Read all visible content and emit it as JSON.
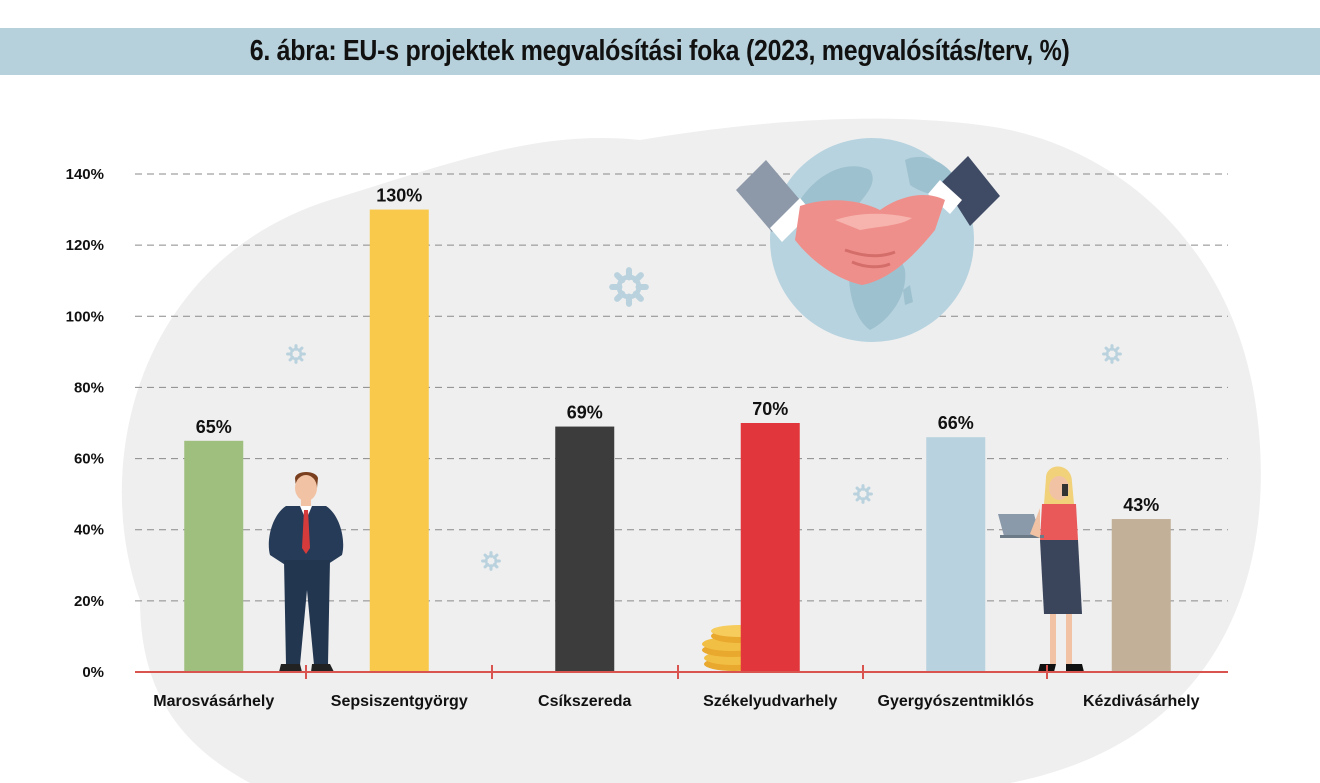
{
  "title": "6. ábra: EU-s projektek megvalósítási foka (2023, megvalósítás/terv, %)",
  "chart_data": {
    "type": "bar",
    "title": "6. ábra: EU-s projektek megvalósítási foka (2023, megvalósítás/terv, %)",
    "xlabel": "",
    "ylabel": "",
    "categories": [
      "Marosvásárhely",
      "Sepsiszentgyörgy",
      "Csíkszereda",
      "Székelyudvarhely",
      "Gyergyószentmiklós",
      "Kézdivásárhely"
    ],
    "values": [
      65,
      130,
      69,
      70,
      66,
      43
    ],
    "value_labels": [
      "65%",
      "130%",
      "69%",
      "70%",
      "66%",
      "43%"
    ],
    "bar_colors": [
      "#9fbf7f",
      "#f8c94a",
      "#3c3c3c",
      "#e1373c",
      "#b8d2df",
      "#c2b098"
    ],
    "ylim": [
      0,
      140
    ],
    "yticks": [
      0,
      20,
      40,
      60,
      80,
      100,
      120,
      140
    ],
    "ytick_labels": [
      "0%",
      "20%",
      "40%",
      "60%",
      "80%",
      "100%",
      "120%",
      "140%"
    ],
    "grid": true,
    "legend": "none"
  },
  "colors": {
    "title_band": "#b7d1dc",
    "baseline": "#d9534f",
    "gridline": "#8a8a8a",
    "background_blob": "#efefef"
  },
  "decorations": [
    "handshake-globe-illustration",
    "businessman-illustration",
    "businesswoman-illustration",
    "coin-stack-icon",
    "gear-icon"
  ]
}
